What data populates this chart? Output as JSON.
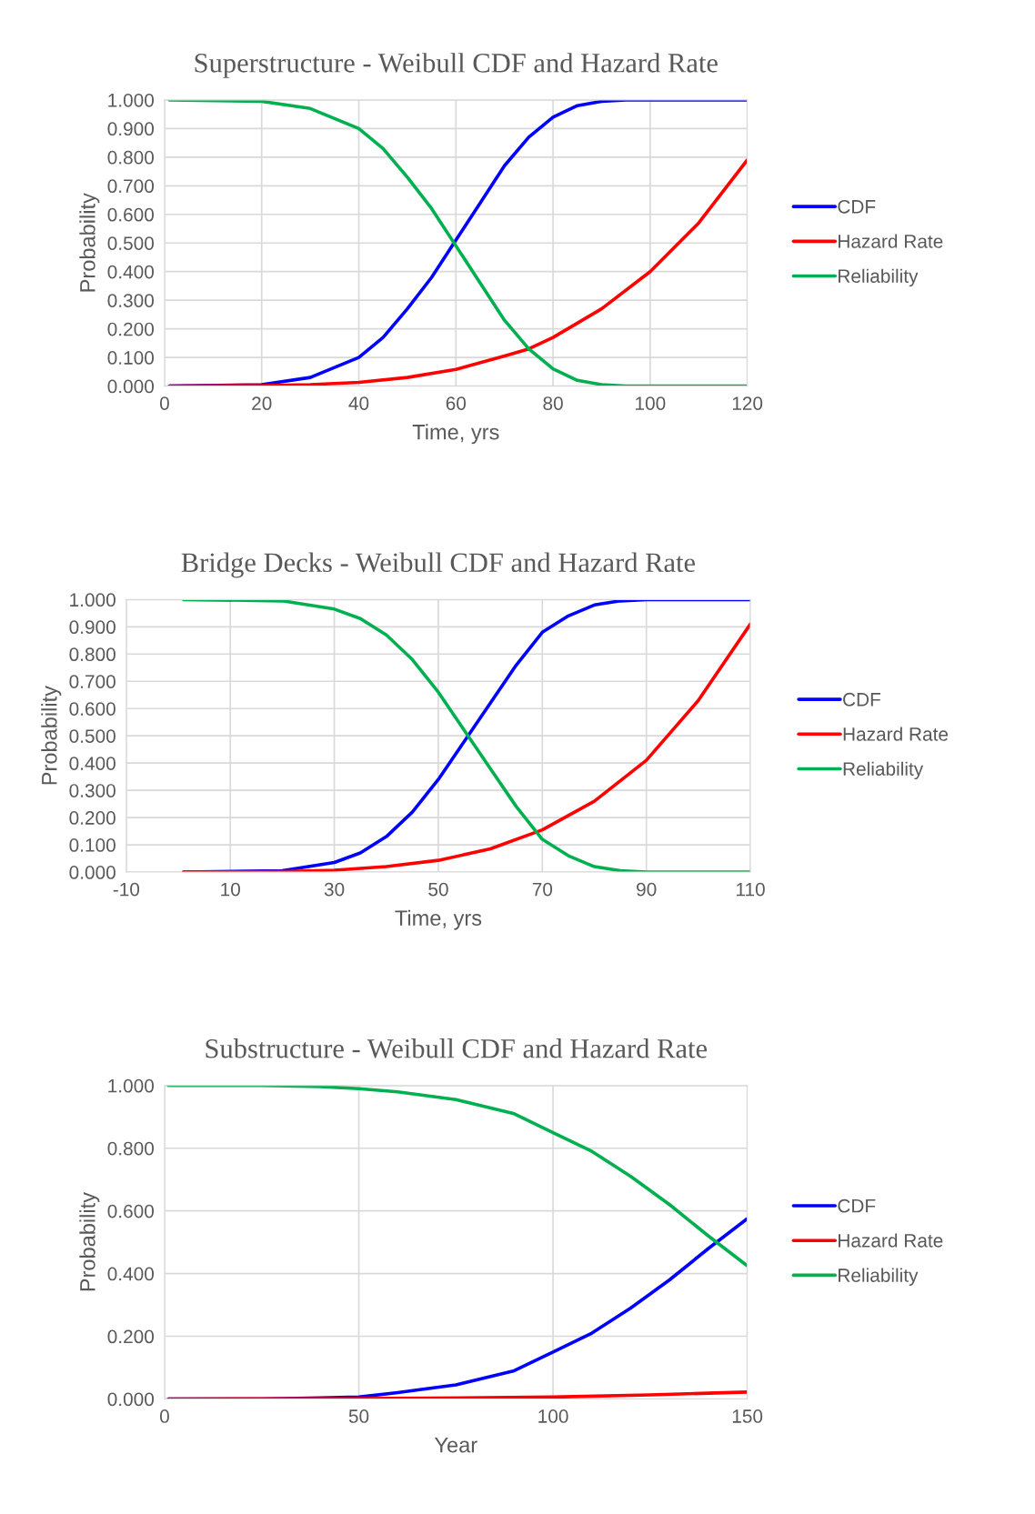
{
  "chart_data": [
    {
      "type": "line",
      "title": "Superstructure - Weibull CDF and Hazard Rate",
      "xlabel": "Time, yrs",
      "ylabel": "Probability",
      "xlim": [
        0,
        120
      ],
      "xticks": [
        0,
        20,
        40,
        60,
        80,
        100,
        120
      ],
      "ylim": [
        0,
        1
      ],
      "yticks": [
        {
          "value": 0,
          "label": "0.000"
        },
        {
          "value": 0.1,
          "label": "0.100"
        },
        {
          "value": 0.2,
          "label": "0.200"
        },
        {
          "value": 0.3,
          "label": "0.300"
        },
        {
          "value": 0.4,
          "label": "0.400"
        },
        {
          "value": 0.5,
          "label": "0.500"
        },
        {
          "value": 0.6,
          "label": "0.600"
        },
        {
          "value": 0.7,
          "label": "0.700"
        },
        {
          "value": 0.8,
          "label": "0.800"
        },
        {
          "value": 0.9,
          "label": "0.900"
        },
        {
          "value": 1,
          "label": "1.000"
        }
      ],
      "grid": true,
      "legend": "right",
      "marker": "none",
      "line_style": "solid",
      "series": [
        {
          "name": "CDF",
          "color": "#0000ff",
          "x": [
            1,
            20,
            30,
            40,
            45,
            50,
            55,
            60,
            65,
            70,
            75,
            80,
            85,
            90,
            95,
            100,
            120
          ],
          "values": [
            0,
            0.005,
            0.03,
            0.1,
            0.17,
            0.27,
            0.38,
            0.51,
            0.64,
            0.77,
            0.87,
            0.94,
            0.98,
            0.995,
            1,
            1,
            1
          ]
        },
        {
          "name": "Hazard Rate",
          "color": "#ff0000",
          "x": [
            1,
            20,
            30,
            40,
            50,
            60,
            70,
            75,
            80,
            90,
            100,
            110,
            120
          ],
          "values": [
            0,
            0.002,
            0.005,
            0.013,
            0.03,
            0.058,
            0.105,
            0.13,
            0.17,
            0.27,
            0.4,
            0.57,
            0.79
          ]
        },
        {
          "name": "Reliability",
          "color": "#00b050",
          "x": [
            1,
            20,
            30,
            40,
            45,
            50,
            55,
            60,
            65,
            70,
            75,
            80,
            85,
            90,
            95,
            100,
            120
          ],
          "values": [
            1,
            0.995,
            0.97,
            0.9,
            0.83,
            0.73,
            0.62,
            0.49,
            0.36,
            0.23,
            0.13,
            0.06,
            0.02,
            0.005,
            0,
            0,
            0
          ]
        }
      ]
    },
    {
      "type": "line",
      "title": "Bridge Decks - Weibull CDF and Hazard Rate",
      "xlabel": "Time, yrs",
      "ylabel": "Probability",
      "xlim": [
        -10,
        110
      ],
      "xticks": [
        -10,
        10,
        30,
        50,
        70,
        90,
        110
      ],
      "ylim": [
        0,
        1
      ],
      "yticks": [
        {
          "value": 0,
          "label": "0.000"
        },
        {
          "value": 0.1,
          "label": "0.100"
        },
        {
          "value": 0.2,
          "label": "0.200"
        },
        {
          "value": 0.3,
          "label": "0.300"
        },
        {
          "value": 0.4,
          "label": "0.400"
        },
        {
          "value": 0.5,
          "label": "0.500"
        },
        {
          "value": 0.6,
          "label": "0.600"
        },
        {
          "value": 0.7,
          "label": "0.700"
        },
        {
          "value": 0.8,
          "label": "0.800"
        },
        {
          "value": 0.9,
          "label": "0.900"
        },
        {
          "value": 1,
          "label": "1.000"
        }
      ],
      "grid": true,
      "legend": "right",
      "marker": "none",
      "line_style": "solid",
      "series": [
        {
          "name": "CDF",
          "color": "#0000ff",
          "x": [
            1,
            20,
            30,
            35,
            40,
            45,
            50,
            55,
            60,
            65,
            70,
            75,
            80,
            85,
            90,
            110
          ],
          "values": [
            0,
            0.005,
            0.035,
            0.07,
            0.13,
            0.22,
            0.34,
            0.48,
            0.62,
            0.76,
            0.88,
            0.94,
            0.98,
            0.995,
            1,
            1
          ]
        },
        {
          "name": "Hazard Rate",
          "color": "#ff0000",
          "x": [
            1,
            20,
            30,
            40,
            50,
            60,
            70,
            80,
            90,
            100,
            110
          ],
          "values": [
            0,
            0.002,
            0.007,
            0.02,
            0.043,
            0.085,
            0.155,
            0.26,
            0.41,
            0.63,
            0.91
          ]
        },
        {
          "name": "Reliability",
          "color": "#00b050",
          "x": [
            1,
            20,
            30,
            35,
            40,
            45,
            50,
            55,
            60,
            65,
            70,
            75,
            80,
            85,
            90,
            110
          ],
          "values": [
            1,
            0.995,
            0.965,
            0.93,
            0.87,
            0.78,
            0.66,
            0.52,
            0.38,
            0.24,
            0.12,
            0.06,
            0.02,
            0.005,
            0,
            0
          ]
        }
      ]
    },
    {
      "type": "line",
      "title": "Substructure - Weibull CDF and Hazard Rate",
      "xlabel": "Year",
      "ylabel": "Probability",
      "xlim": [
        0,
        150
      ],
      "xticks": [
        0,
        50,
        100,
        150
      ],
      "ylim": [
        0,
        1
      ],
      "yticks": [
        {
          "value": 0,
          "label": "0.000"
        },
        {
          "value": 0.2,
          "label": "0.200"
        },
        {
          "value": 0.4,
          "label": "0.400"
        },
        {
          "value": 0.6,
          "label": "0.600"
        },
        {
          "value": 0.8,
          "label": "0.800"
        },
        {
          "value": 1,
          "label": "1.000"
        }
      ],
      "grid": true,
      "legend": "right",
      "marker": "none",
      "line_style": "solid",
      "series": [
        {
          "name": "CDF",
          "color": "#0000ff",
          "x": [
            1,
            25,
            40,
            50,
            60,
            75,
            90,
            100,
            110,
            120,
            130,
            140,
            150
          ],
          "values": [
            0,
            0,
            0.003,
            0.006,
            0.02,
            0.045,
            0.09,
            0.15,
            0.21,
            0.29,
            0.38,
            0.48,
            0.575
          ]
        },
        {
          "name": "Hazard Rate",
          "color": "#ff0000",
          "x": [
            1,
            50,
            100,
            125,
            150
          ],
          "values": [
            0,
            0.001,
            0.006,
            0.013,
            0.022
          ]
        },
        {
          "name": "Reliability",
          "color": "#00b050",
          "x": [
            1,
            25,
            40,
            50,
            60,
            75,
            90,
            100,
            110,
            120,
            130,
            140,
            150
          ],
          "values": [
            1,
            1,
            0.997,
            0.99,
            0.98,
            0.955,
            0.91,
            0.85,
            0.79,
            0.71,
            0.62,
            0.52,
            0.425
          ]
        }
      ]
    }
  ]
}
